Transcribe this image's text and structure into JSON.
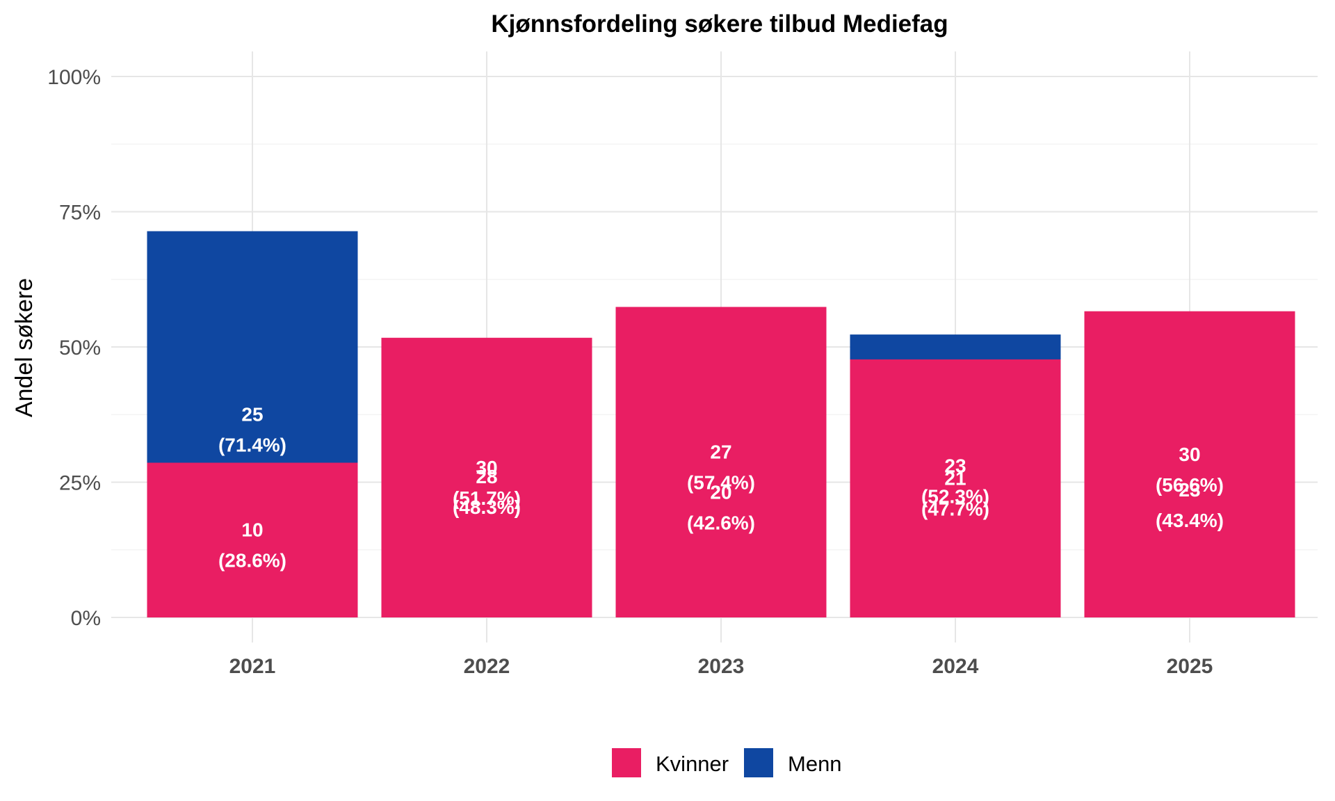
{
  "chart_data": {
    "type": "bar",
    "stacked": true,
    "percent_stacked": true,
    "title": "Kjønnsfordeling søkere tilbud Mediefag",
    "xlabel": "",
    "ylabel": "Andel søkere",
    "categories": [
      "2021",
      "2022",
      "2023",
      "2024",
      "2025"
    ],
    "ylim": [
      0,
      1
    ],
    "yticks": [
      0,
      0.25,
      0.5,
      0.75,
      1
    ],
    "ytick_labels": [
      "0%",
      "25%",
      "50%",
      "75%",
      "100%"
    ],
    "grid": true,
    "legend_position": "bottom",
    "series": [
      {
        "name": "Menn",
        "color": "#0f47a1",
        "counts": [
          25,
          28,
          20,
          23,
          23
        ],
        "percents": [
          71.4,
          48.3,
          42.6,
          52.3,
          43.4
        ],
        "labels": [
          "25\n(71.4%)",
          "28\n(48.3%)",
          "20\n(42.6%)",
          "23\n(52.3%)",
          "23\n(43.4%)"
        ]
      },
      {
        "name": "Kvinner",
        "color": "#e91e63",
        "counts": [
          10,
          30,
          27,
          21,
          30
        ],
        "percents": [
          28.6,
          51.7,
          57.4,
          47.7,
          56.6
        ],
        "labels": [
          "10\n(28.6%)",
          "30\n(51.7%)",
          "27\n(57.4%)",
          "21\n(47.7%)",
          "30\n(56.6%)"
        ]
      }
    ],
    "legend": [
      {
        "name": "Kvinner",
        "color": "#e91e63"
      },
      {
        "name": "Menn",
        "color": "#0f47a1"
      }
    ]
  }
}
